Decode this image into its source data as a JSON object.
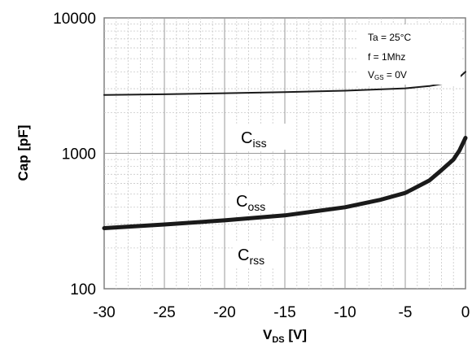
{
  "chart_data": {
    "type": "line",
    "title": "",
    "xlabel": {
      "main": "V",
      "sub": "DS",
      "rest": " [V]"
    },
    "ylabel": "Cap [pF]",
    "x_scale": "linear",
    "y_scale": "log",
    "xlim": [
      -30,
      0
    ],
    "ylim": [
      100,
      10000
    ],
    "x_ticks": [
      -30,
      -25,
      -20,
      -15,
      -10,
      -5,
      0
    ],
    "x_tick_labels": [
      "-30",
      "-25",
      "-20",
      "-15",
      "-10",
      "-5",
      "0"
    ],
    "y_ticks": [
      100,
      1000,
      10000
    ],
    "y_tick_labels": [
      "100",
      "1000",
      "10000"
    ],
    "grid": true,
    "conditions": [
      "Ta = 25°C",
      "f = 1Mhz",
      "V",
      "GS",
      " = 0V"
    ],
    "series": [
      {
        "name": {
          "main": "C",
          "sub": "iss"
        },
        "x": [
          -30,
          -25,
          -20,
          -15,
          -10,
          -5,
          -3,
          -2,
          -1,
          -0.5,
          0
        ],
        "values": [
          2700,
          2730,
          2780,
          2830,
          2900,
          3020,
          3140,
          3250,
          3450,
          3650,
          4000
        ],
        "width": 2
      },
      {
        "name": {
          "main": "C",
          "sub": "oss"
        },
        "x": [
          -30,
          -25,
          -20,
          -15,
          -10,
          -7,
          -5,
          -3,
          -2,
          -1,
          -0.5,
          0
        ],
        "values": [
          280,
          298,
          320,
          348,
          400,
          455,
          510,
          630,
          750,
          900,
          1050,
          1300
        ],
        "width": 5
      }
    ],
    "extra_labels": [
      {
        "main": "C",
        "sub": "rss"
      }
    ]
  }
}
